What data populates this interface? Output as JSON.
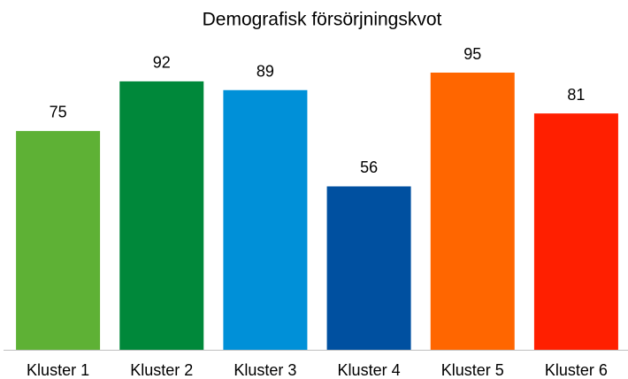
{
  "chart_data": {
    "type": "bar",
    "title": "Demografisk försörjningskvot",
    "categories": [
      "Kluster 1",
      "Kluster 2",
      "Kluster 3",
      "Kluster 4",
      "Kluster 5",
      "Kluster 6"
    ],
    "values": [
      75,
      92,
      89,
      56,
      95,
      81
    ],
    "colors": [
      "#5eb135",
      "#00883a",
      "#0090d8",
      "#0050a0",
      "#ff6600",
      "#ff1f00"
    ]
  }
}
